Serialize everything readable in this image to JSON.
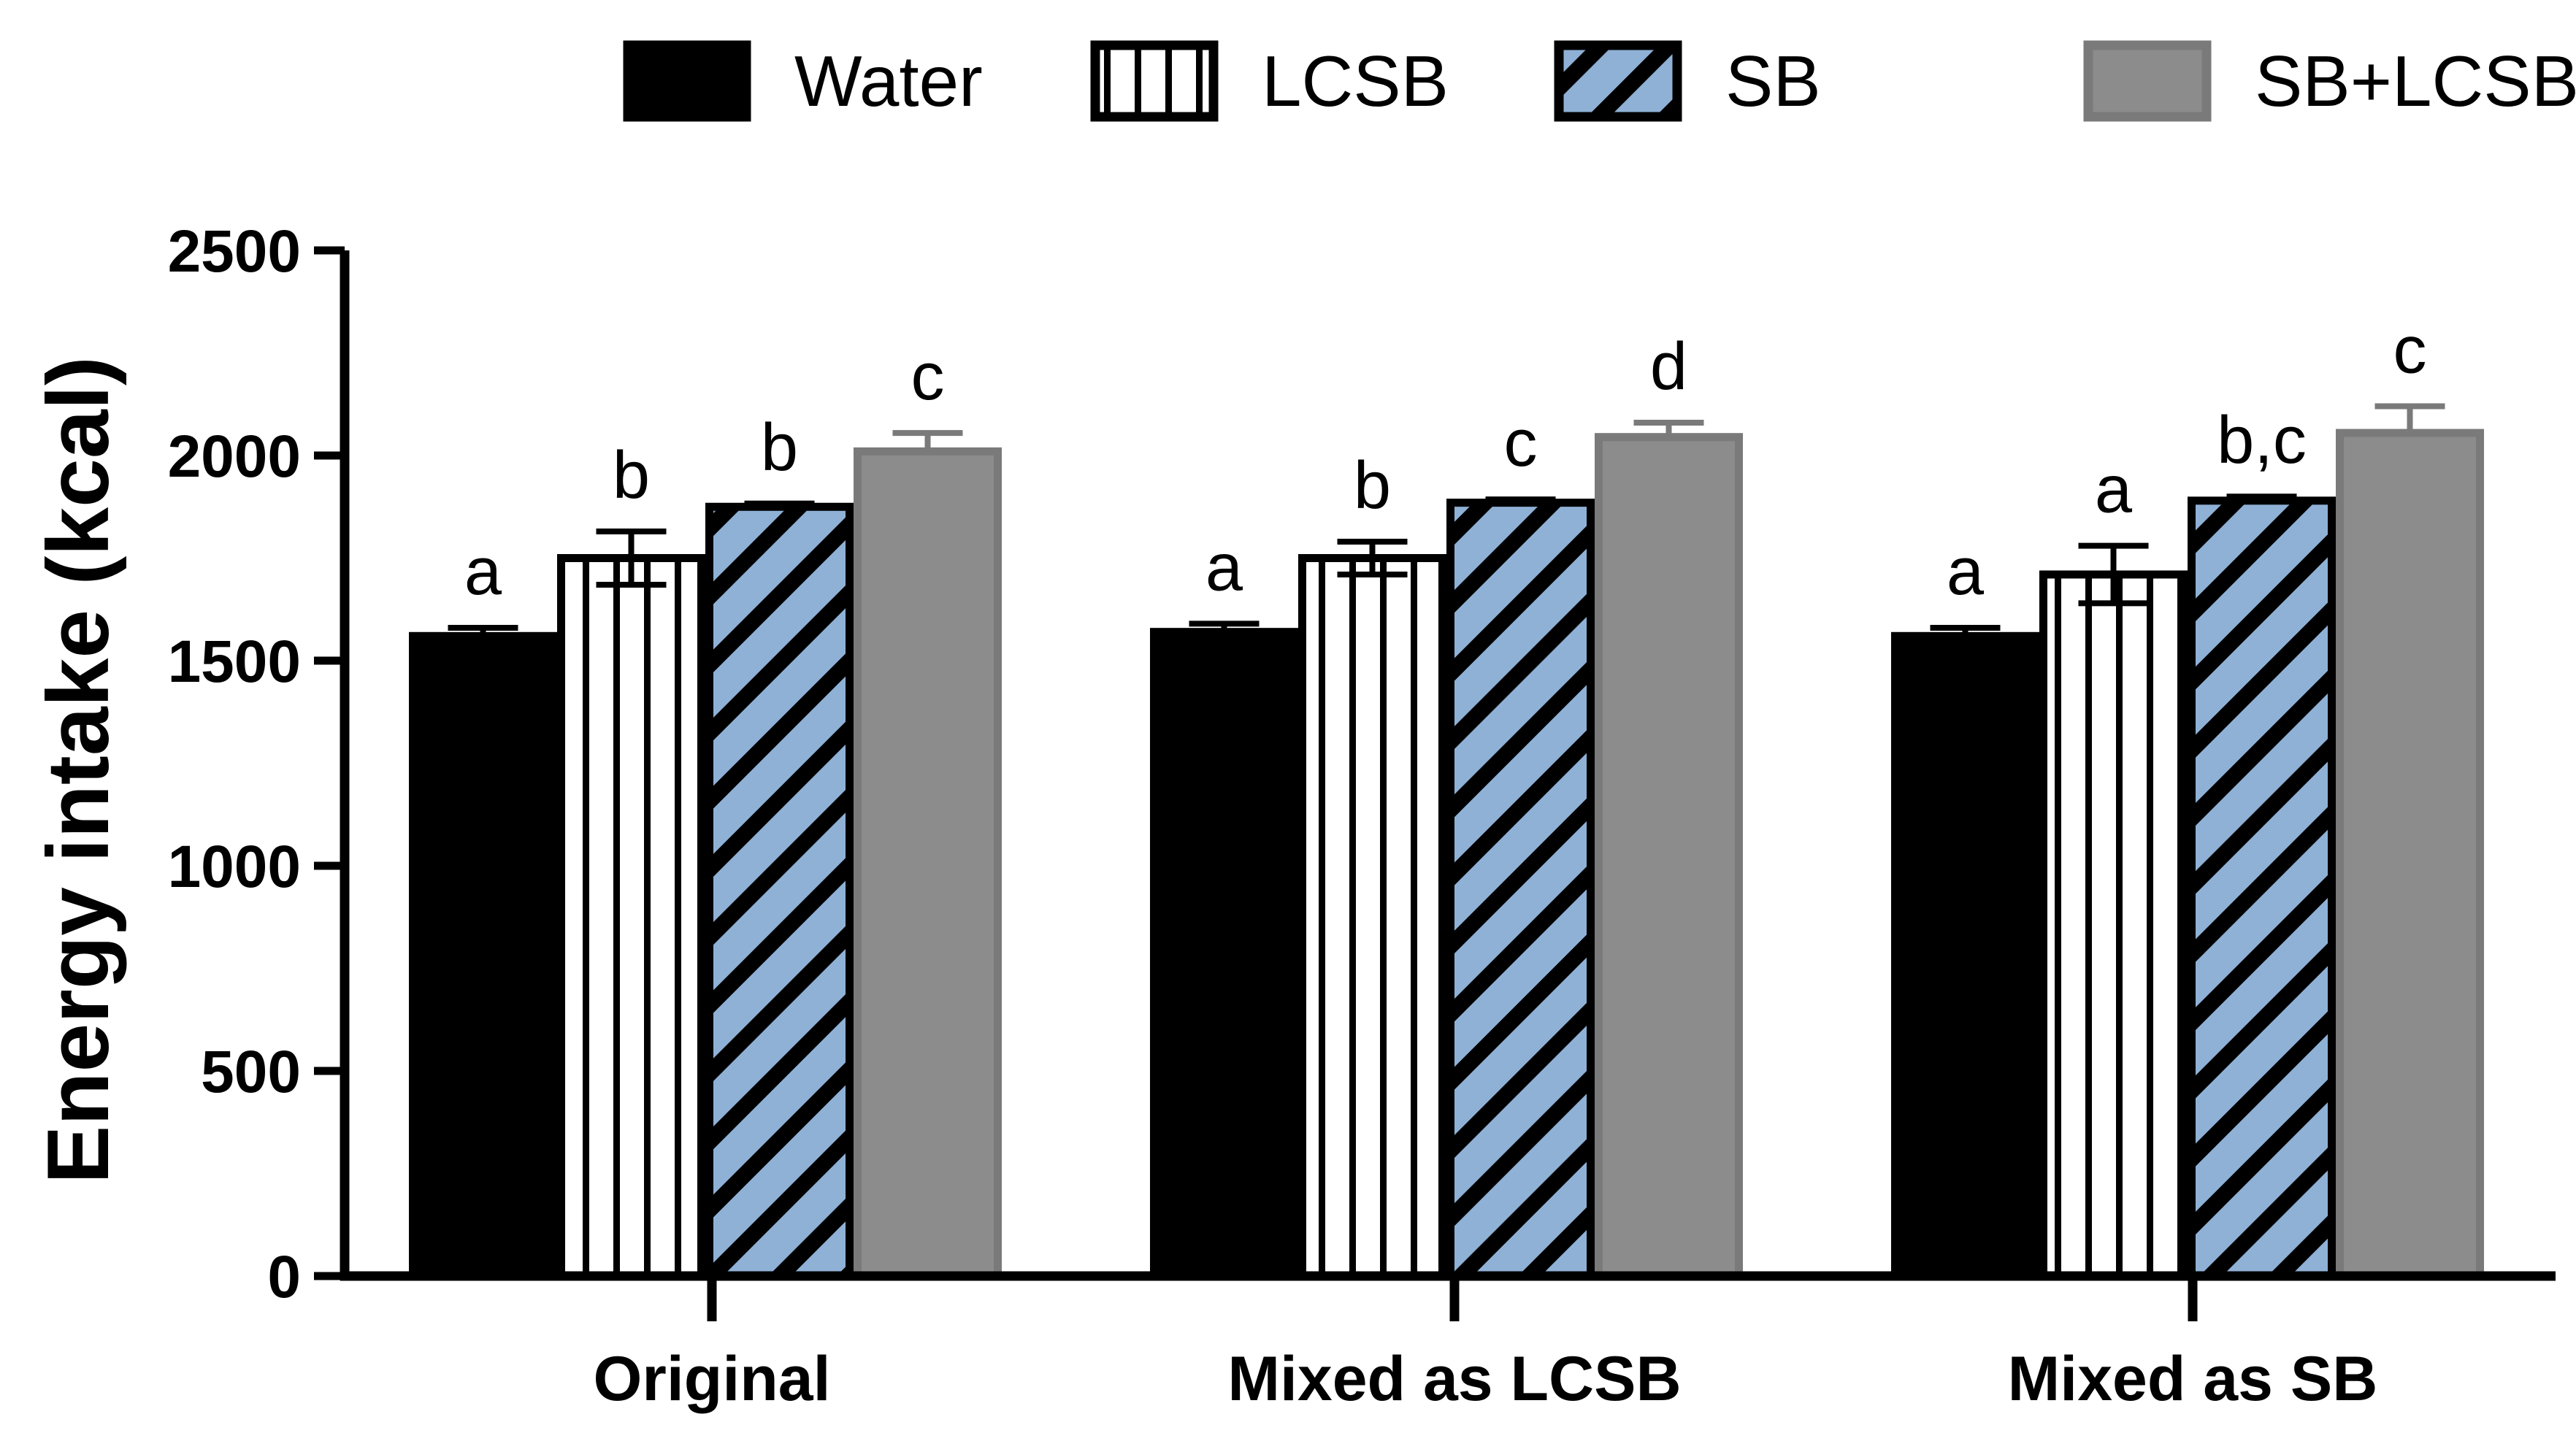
{
  "chart_data": {
    "type": "bar",
    "title": "",
    "xlabel": "",
    "ylabel": "Energy intake (kcal)",
    "ylim": [
      0,
      2500
    ],
    "yticks": [
      0,
      500,
      1000,
      1500,
      2000,
      2500
    ],
    "ytick_labels": [
      "0",
      "500",
      "1000",
      "1500",
      "2000",
      "2500"
    ],
    "categories": [
      "Original",
      "Mixed as LCSB",
      "Mixed as SB"
    ],
    "legend_position": "top",
    "series": [
      {
        "name": "Water",
        "fill": "#000000",
        "pattern": "solid",
        "values": [
          1560,
          1570,
          1560
        ],
        "errors": [
          20,
          20,
          20
        ],
        "labels": [
          "a",
          "a",
          "a"
        ]
      },
      {
        "name": "LCSB",
        "fill": "#ffffff",
        "pattern": "vertical",
        "values": [
          1750,
          1750,
          1710
        ],
        "errors": [
          65,
          40,
          70
        ],
        "labels": [
          "b",
          "b",
          "a"
        ]
      },
      {
        "name": "SB",
        "fill": "#8fb1d6",
        "pattern": "diagonal",
        "values": [
          1875,
          1885,
          1890
        ],
        "errors": [
          8,
          8,
          10
        ],
        "labels": [
          "b",
          "c",
          "b,c"
        ]
      },
      {
        "name": "SB+LCSB",
        "fill": "#8c8c8c",
        "pattern": "solid",
        "values": [
          2010,
          2045,
          2055
        ],
        "errors": [
          45,
          35,
          65
        ],
        "labels": [
          "c",
          "d",
          "c"
        ]
      }
    ]
  }
}
